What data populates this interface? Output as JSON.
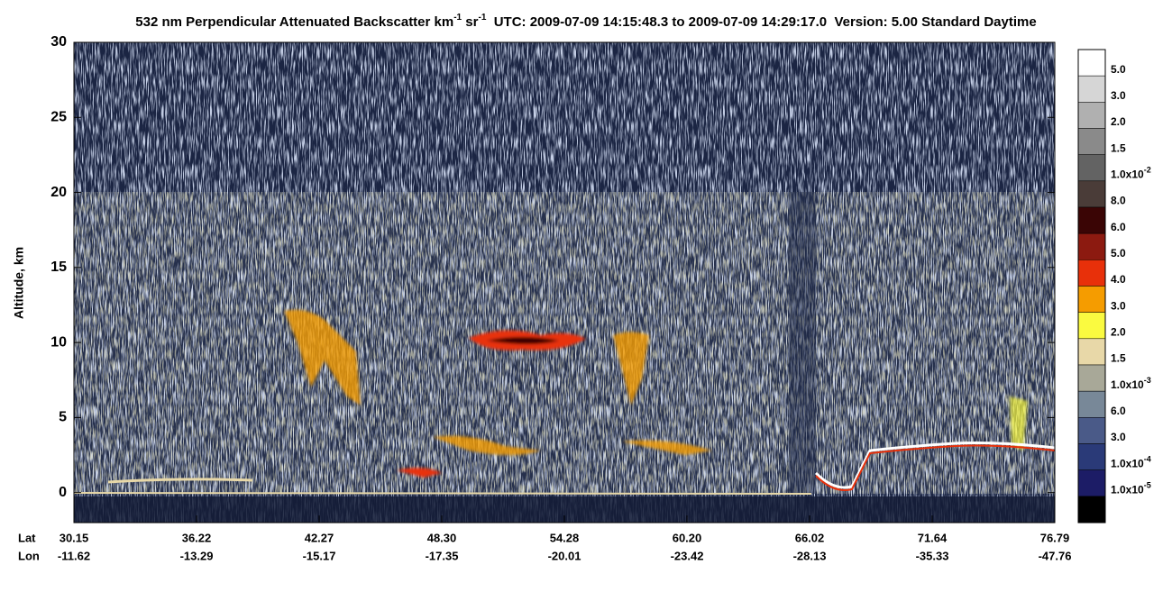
{
  "chart_data": {
    "type": "heatmap",
    "title": [
      "532 nm Perpendicular Attenuated Backscatter km",
      "-1",
      " sr",
      "-1",
      "  UTC: 2009-07-09 14:15:48.3 to 2009-07-09 14:29:17.0  Version: 5.00 Standard Daytime"
    ],
    "y_label": "Altitude, km",
    "ylim": [
      -2,
      30
    ],
    "yticks": [
      0,
      5,
      10,
      15,
      20,
      25,
      30
    ],
    "x_row_labels": [
      "Lat",
      "Lon"
    ],
    "lat": [
      "30.15",
      "36.22",
      "42.27",
      "48.30",
      "54.28",
      "60.20",
      "66.02",
      "71.64",
      "76.79"
    ],
    "lon": [
      "-11.62",
      "-13.29",
      "-15.17",
      "-17.35",
      "-20.01",
      "-23.42",
      "-28.13",
      "-35.33",
      "-47.76"
    ],
    "colorbar": [
      {
        "color": "#ffffff",
        "label": "5.0"
      },
      {
        "color": "#d6d6d6",
        "label": "3.0"
      },
      {
        "color": "#b0b0b0",
        "label": "2.0"
      },
      {
        "color": "#8a8a8a",
        "label": "1.5"
      },
      {
        "color": "#636363",
        "label": "1.0x10",
        "exp": "-2"
      },
      {
        "color": "#4a3c38",
        "label": "8.0"
      },
      {
        "color": "#3a0505",
        "label": "6.0"
      },
      {
        "color": "#8c1a10",
        "label": "5.0"
      },
      {
        "color": "#e8300a",
        "label": "4.0"
      },
      {
        "color": "#f59c00",
        "label": "3.0"
      },
      {
        "color": "#fafa40",
        "label": "2.0"
      },
      {
        "color": "#e8d8a8",
        "label": "1.5"
      },
      {
        "color": "#a8a898",
        "label": "1.0x10",
        "exp": "-3"
      },
      {
        "color": "#788898",
        "label": "6.0"
      },
      {
        "color": "#4a5a88",
        "label": "3.0"
      },
      {
        "color": "#2a3a78",
        "label": "1.0x10",
        "exp": "-4"
      },
      {
        "color": "#1c1c66",
        "label": "1.0x10",
        "exp": "-5"
      },
      {
        "color": "#000000"
      }
    ]
  }
}
